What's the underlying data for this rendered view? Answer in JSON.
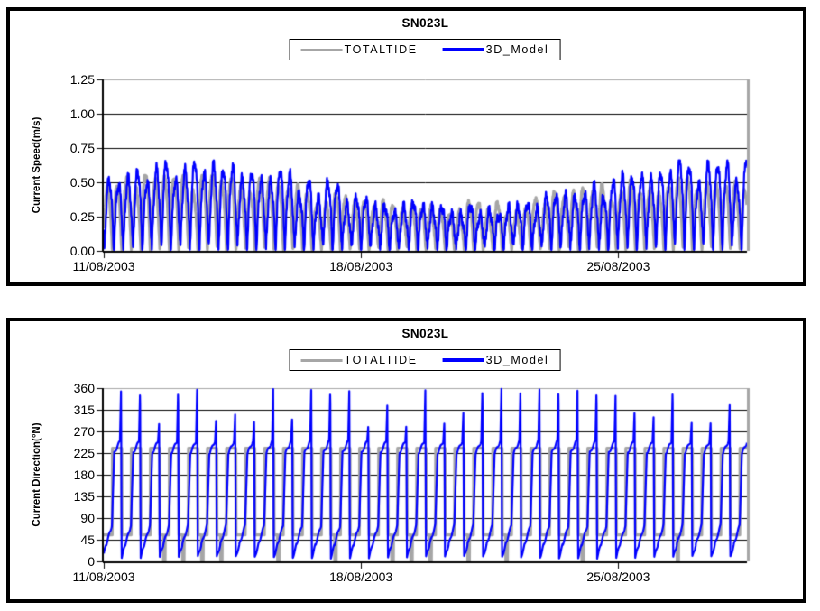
{
  "figure": {
    "background": "#ffffff",
    "box_border_color": "#000000",
    "grid_color": "#000000",
    "frame_gray": "#a6a6a6",
    "totaltide_color": "#a6a6a6",
    "model_color": "#0000ff"
  },
  "chart_data": [
    {
      "type": "line",
      "title": "SN023L",
      "ylabel": "Current Speed(m/s)",
      "xlabel": "",
      "ylim": [
        0,
        1.25
      ],
      "grid": "horizontal",
      "legend_position": "top-center-boxed",
      "x_span_days": 17.5,
      "frame_color": "#a6a6a6",
      "grid_color": "#000000",
      "yticks": [
        {
          "value": 0.0,
          "label": "0.00"
        },
        {
          "value": 0.25,
          "label": "0.25"
        },
        {
          "value": 0.5,
          "label": "0.50"
        },
        {
          "value": 0.75,
          "label": "0.75"
        },
        {
          "value": 1.0,
          "label": "1.00"
        },
        {
          "value": 1.25,
          "label": "1.25"
        }
      ],
      "xticks": [
        {
          "day": 0,
          "label": "11/08/2003"
        },
        {
          "day": 7,
          "label": "18/08/2003"
        },
        {
          "day": 14,
          "label": "25/08/2003"
        }
      ],
      "series": [
        {
          "name": "TOTALTIDE",
          "color": "#a6a6a6",
          "line_width": 3.2,
          "kind": "tidal_speed",
          "tidal_period_hours": 12.42,
          "springneap_period_days": 14.77,
          "mean_peak_speed": 0.4,
          "spring_neap_amplitude": 0.1,
          "spring_day": 2.0,
          "peak_jitter": 0.36,
          "phase_days": 0.026,
          "noise": 0.025,
          "seed": 7,
          "clip": [
            0.008,
            0.55
          ],
          "observed_peak_range": [
            0.28,
            0.52
          ],
          "observed_trough_range": [
            0.0,
            0.12
          ]
        },
        {
          "name": "3D_Model",
          "color": "#0000ff",
          "line_width": 2.2,
          "kind": "tidal_speed",
          "tidal_period_hours": 12.42,
          "springneap_period_days": 14.77,
          "mean_peak_speed": 0.44,
          "spring_neap_amplitude": 0.16,
          "spring_day": 2.3,
          "peak_jitter": 0.36,
          "phase_days": -0.016,
          "noise": 0.05,
          "seed": 13,
          "clip": [
            0.008,
            0.66
          ],
          "observed_peak_range": [
            0.25,
            0.65
          ],
          "observed_trough_range": [
            0.0,
            0.15
          ]
        }
      ]
    },
    {
      "type": "line",
      "title": "SN023L",
      "ylabel": "Current Direction(°N)",
      "xlabel": "",
      "ylim": [
        0,
        360
      ],
      "grid": "horizontal",
      "legend_position": "top-center-boxed",
      "x_span_days": 17.5,
      "frame_color": "#a6a6a6",
      "grid_color": "#000000",
      "yticks": [
        {
          "value": 0,
          "label": "0"
        },
        {
          "value": 45,
          "label": "45"
        },
        {
          "value": 90,
          "label": "90"
        },
        {
          "value": 135,
          "label": "135"
        },
        {
          "value": 180,
          "label": "180"
        },
        {
          "value": 225,
          "label": "225"
        },
        {
          "value": 270,
          "label": "270"
        },
        {
          "value": 315,
          "label": "315"
        },
        {
          "value": 360,
          "label": "360"
        }
      ],
      "xticks": [
        {
          "day": 0,
          "label": "11/08/2003"
        },
        {
          "day": 7,
          "label": "18/08/2003"
        },
        {
          "day": 14,
          "label": "25/08/2003"
        }
      ],
      "series": [
        {
          "name": "TOTALTIDE",
          "color": "#a6a6a6",
          "line_width": 3.2,
          "kind": "tidal_direction_square",
          "tidal_period_hours": 12.42,
          "flood_direction": 235,
          "ebb_direction": 55,
          "dropout_direction": 1,
          "dropout_probability": 0.32,
          "phase_days": 0.285,
          "seed": 21
        },
        {
          "name": "3D_Model",
          "color": "#0000ff",
          "line_width": 2.2,
          "kind": "tidal_direction_model",
          "tidal_period_hours": 12.42,
          "ebb_direction_range": [
            35,
            75
          ],
          "flood_plateau": [
            225,
            250
          ],
          "spike_peak_min": 285,
          "spike_peak_max": 360,
          "post_spike_low": 8,
          "phase_days": 0.45,
          "seed": 33
        }
      ]
    }
  ]
}
